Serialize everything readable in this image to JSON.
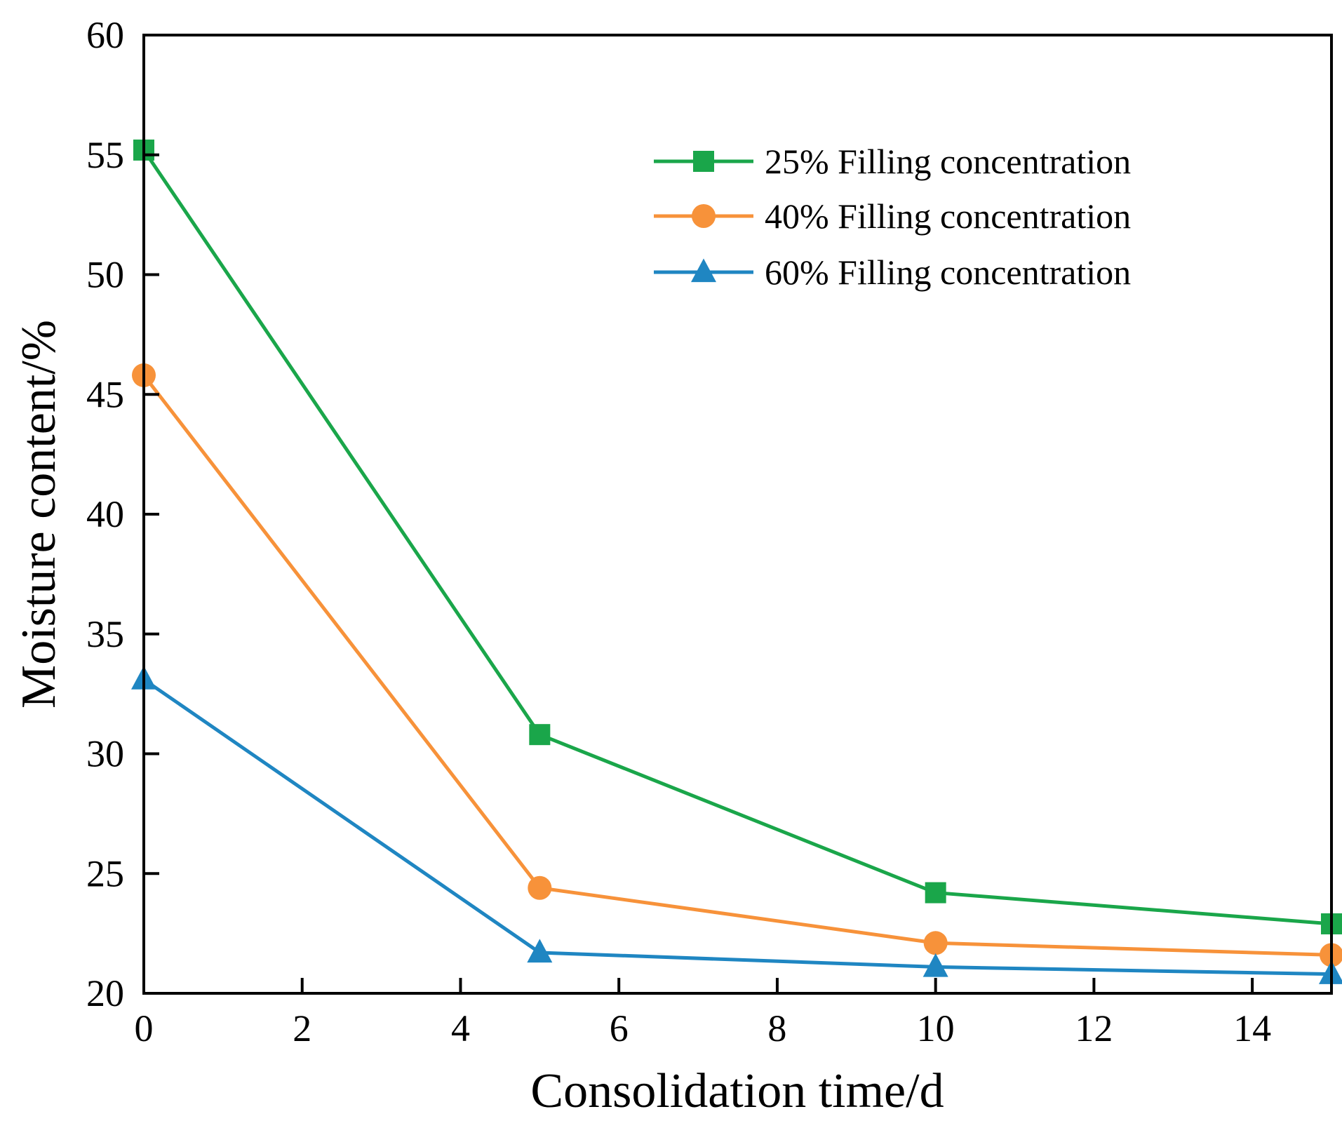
{
  "chart_data": {
    "type": "line",
    "title": "",
    "xlabel": "Consolidation time/d",
    "ylabel": "Moisture content/%",
    "xlim": [
      0,
      15
    ],
    "ylim": [
      20,
      60
    ],
    "xticks": [
      0,
      2,
      4,
      6,
      8,
      10,
      12,
      14
    ],
    "yticks": [
      20,
      25,
      30,
      35,
      40,
      45,
      50,
      55,
      60
    ],
    "grid": false,
    "legend_position": "top-right",
    "x": [
      0,
      5,
      10,
      15
    ],
    "series": [
      {
        "name": "25% Filling concentration",
        "values": [
          55.2,
          30.8,
          24.2,
          22.9
        ],
        "color": "#1aa64a",
        "marker": "square"
      },
      {
        "name": "40% Filling concentration",
        "values": [
          45.8,
          24.4,
          22.1,
          21.6
        ],
        "color": "#f7923a",
        "marker": "circle"
      },
      {
        "name": "60% Filling concentration",
        "values": [
          33.1,
          21.7,
          21.1,
          20.8
        ],
        "color": "#1f86c2",
        "marker": "triangle"
      }
    ]
  }
}
